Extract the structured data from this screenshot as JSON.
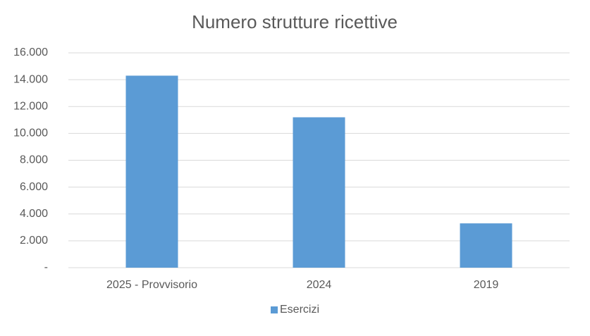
{
  "chart_data": {
    "type": "bar",
    "title": "Numero strutture ricettive",
    "categories": [
      "2025 - Provvisorio",
      "2024",
      "2019"
    ],
    "series": [
      {
        "name": "Esercizi",
        "color": "#5b9bd5",
        "values": [
          14300,
          11200,
          3300
        ]
      }
    ],
    "ylim": [
      0,
      16000
    ],
    "yticks": [
      {
        "value": 0,
        "label": "-"
      },
      {
        "value": 2000,
        "label": "2.000"
      },
      {
        "value": 4000,
        "label": "4.000"
      },
      {
        "value": 6000,
        "label": "6.000"
      },
      {
        "value": 8000,
        "label": "8.000"
      },
      {
        "value": 10000,
        "label": "10.000"
      },
      {
        "value": 12000,
        "label": "12.000"
      },
      {
        "value": 14000,
        "label": "14.000"
      },
      {
        "value": 16000,
        "label": "16.000"
      }
    ],
    "grid": true,
    "legend": "bottom"
  }
}
